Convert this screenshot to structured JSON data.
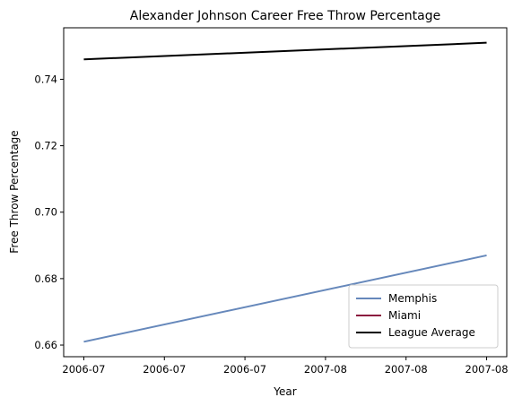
{
  "chart_data": {
    "type": "line",
    "title": "Alexander Johnson Career Free Throw Percentage",
    "xlabel": "Year",
    "ylabel": "Free Throw Percentage",
    "x": [
      0,
      1
    ],
    "xlim": [
      -0.05,
      1.05
    ],
    "xticks": [
      0,
      0.2,
      0.4,
      0.6,
      0.8,
      1.0
    ],
    "xtick_labels": [
      "2006-07",
      "2006-07",
      "2006-07",
      "2007-08",
      "2007-08",
      "2007-08"
    ],
    "ylim": [
      0.6565,
      0.7555
    ],
    "yticks": [
      0.66,
      0.68,
      0.7,
      0.72,
      0.74
    ],
    "ytick_labels": [
      "0.66",
      "0.68",
      "0.70",
      "0.72",
      "0.74"
    ],
    "grid": false,
    "legend_position": "lower-right",
    "series": [
      {
        "name": "Memphis",
        "color": "#6688bb",
        "x": [
          0,
          1
        ],
        "values": [
          0.661,
          0.687
        ]
      },
      {
        "name": "Miami",
        "color": "#8b1a3f",
        "x": [],
        "values": []
      },
      {
        "name": "League Average",
        "color": "#000000",
        "x": [
          0,
          1
        ],
        "values": [
          0.746,
          0.751
        ]
      }
    ]
  }
}
